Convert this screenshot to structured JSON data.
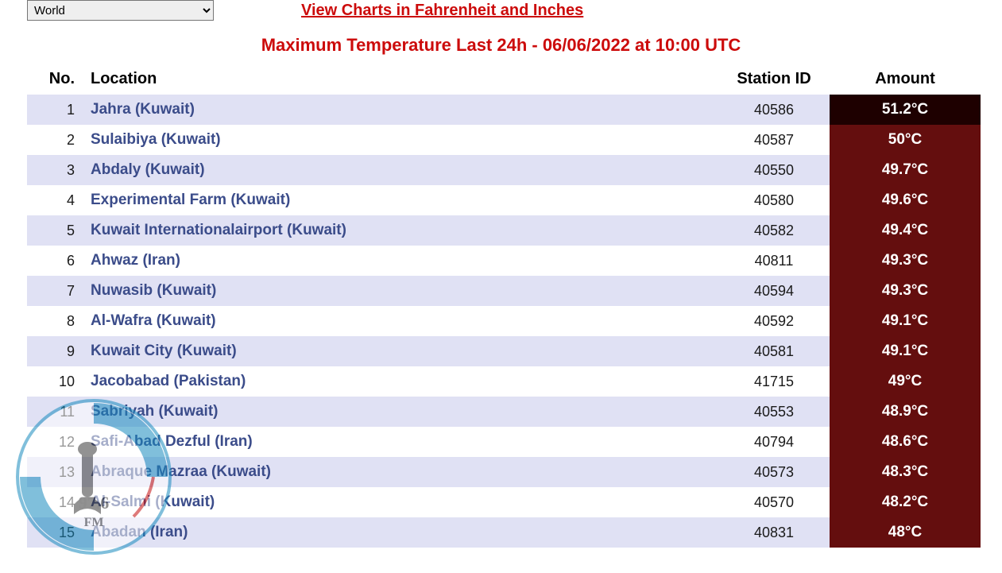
{
  "region_selector": {
    "selected": "World",
    "options": [
      "World"
    ]
  },
  "fahrenheit_link": "View Charts in Fahrenheit and Inches",
  "title": "Maximum Temperature Last 24h - 06/06/2022 at 10:00 UTC",
  "table": {
    "columns": {
      "no": "No.",
      "location": "Location",
      "station_id": "Station ID",
      "amount": "Amount"
    },
    "row_colors": {
      "odd_bg": "#e0e1f4",
      "even_bg": "#ffffff",
      "amount_bg_default": "#640e0e",
      "amount_bg_top": "#1e0000"
    },
    "rows": [
      {
        "no": 1,
        "location": "Jahra (Kuwait)",
        "station_id": "40586",
        "amount": "51.2°C",
        "amount_bg": "#1e0000"
      },
      {
        "no": 2,
        "location": "Sulaibiya (Kuwait)",
        "station_id": "40587",
        "amount": "50°C",
        "amount_bg": "#640e0e"
      },
      {
        "no": 3,
        "location": "Abdaly (Kuwait)",
        "station_id": "40550",
        "amount": "49.7°C",
        "amount_bg": "#640e0e"
      },
      {
        "no": 4,
        "location": "Experimental Farm (Kuwait)",
        "station_id": "40580",
        "amount": "49.6°C",
        "amount_bg": "#640e0e"
      },
      {
        "no": 5,
        "location": "Kuwait Internationalairport (Kuwait)",
        "station_id": "40582",
        "amount": "49.4°C",
        "amount_bg": "#640e0e"
      },
      {
        "no": 6,
        "location": "Ahwaz (Iran)",
        "station_id": "40811",
        "amount": "49.3°C",
        "amount_bg": "#640e0e"
      },
      {
        "no": 7,
        "location": "Nuwasib (Kuwait)",
        "station_id": "40594",
        "amount": "49.3°C",
        "amount_bg": "#640e0e"
      },
      {
        "no": 8,
        "location": "Al-Wafra (Kuwait)",
        "station_id": "40592",
        "amount": "49.1°C",
        "amount_bg": "#640e0e"
      },
      {
        "no": 9,
        "location": "Kuwait City (Kuwait)",
        "station_id": "40581",
        "amount": "49.1°C",
        "amount_bg": "#640e0e"
      },
      {
        "no": 10,
        "location": "Jacobabad (Pakistan)",
        "station_id": "41715",
        "amount": "49°C",
        "amount_bg": "#640e0e"
      },
      {
        "no": 11,
        "location": "Sabriyah (Kuwait)",
        "station_id": "40553",
        "amount": "48.9°C",
        "amount_bg": "#640e0e"
      },
      {
        "no": 12,
        "location": "Safi-Abad Dezful (Iran)",
        "station_id": "40794",
        "amount": "48.6°C",
        "amount_bg": "#640e0e"
      },
      {
        "no": 13,
        "location": "Abraque Mazraa (Kuwait)",
        "station_id": "40573",
        "amount": "48.3°C",
        "amount_bg": "#640e0e"
      },
      {
        "no": 14,
        "location": "Al-Salmi (Kuwait)",
        "station_id": "40570",
        "amount": "48.2°C",
        "amount_bg": "#640e0e"
      },
      {
        "no": 15,
        "location": "Abadan (Iran)",
        "station_id": "40831",
        "amount": "48°C",
        "amount_bg": "#640e0e"
      }
    ]
  },
  "watermark": {
    "freq": "97.6",
    "band": "FM"
  }
}
